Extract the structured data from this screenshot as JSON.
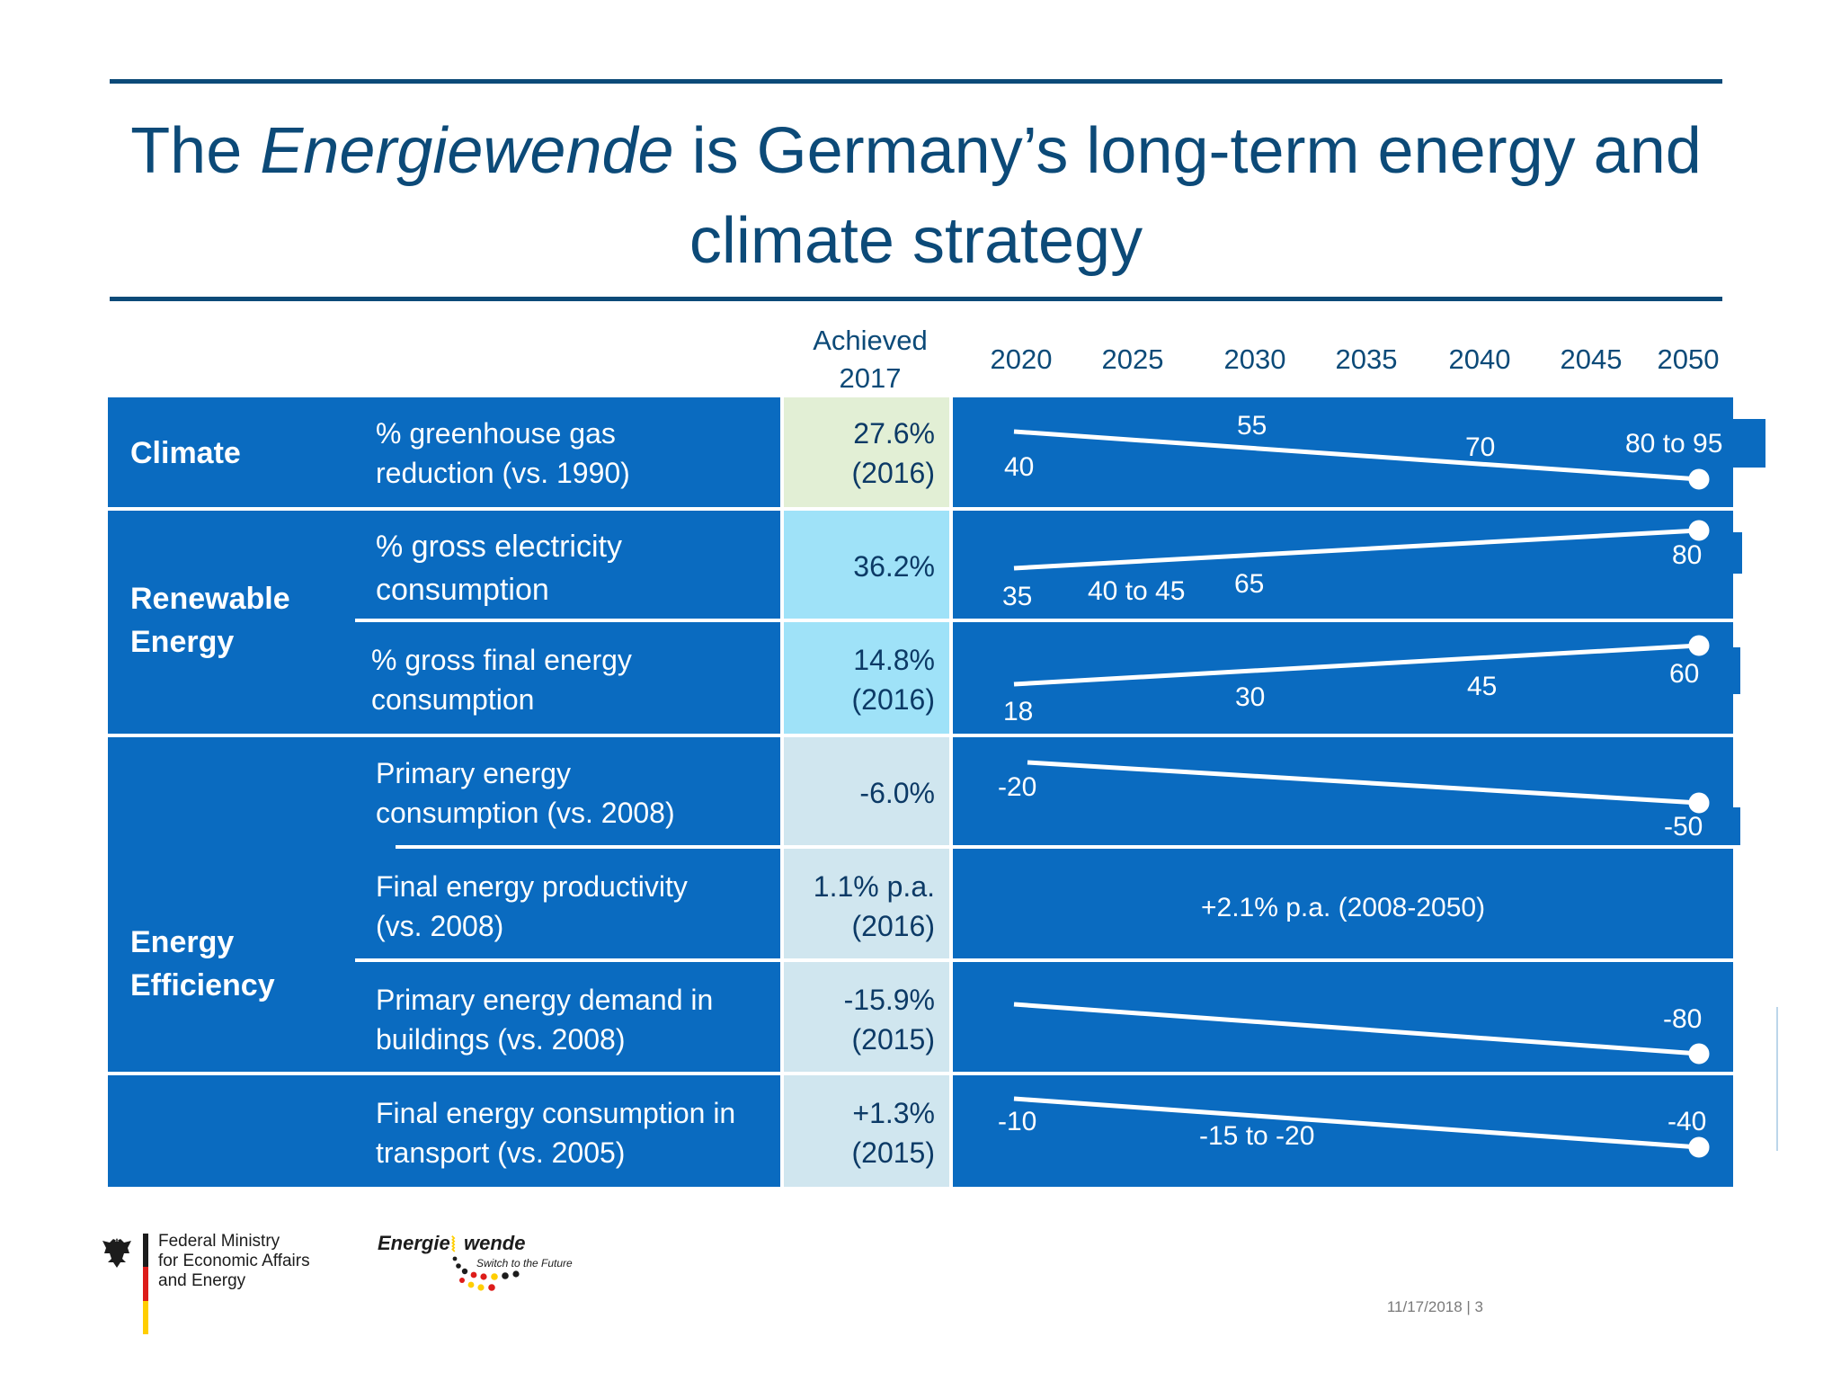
{
  "title": {
    "prefix": "The ",
    "italic": "Energiewende",
    "suffix": " is Germany’s long-term energy and climate strategy"
  },
  "header": {
    "achieved_line1": "Achieved",
    "achieved_line2": "2017",
    "years": [
      "2020",
      "2025",
      "2030",
      "2035",
      "2040",
      "2045",
      "2050"
    ]
  },
  "categories": {
    "climate": "Climate",
    "renewable_1": "Renewable",
    "renewable_2": "Energy",
    "efficiency_1": "Energy",
    "efficiency_2": "Efficiency"
  },
  "rows": [
    {
      "indicator_1": "% greenhouse  gas",
      "indicator_2": "reduction (vs. 1990)",
      "achieved_1": "27.6%",
      "achieved_2": "(2016)",
      "targets": [
        "40",
        "55",
        "70",
        "80 to 95"
      ]
    },
    {
      "indicator_1": "% gross electricity",
      "indicator_2": "consumption",
      "achieved_1": "36.2%",
      "achieved_2": "",
      "targets": [
        "35",
        "40 to 45",
        "65",
        "80"
      ]
    },
    {
      "indicator_1": "% gross final energy",
      "indicator_2": "consumption",
      "achieved_1": "14.8%",
      "achieved_2": "(2016)",
      "targets": [
        "18",
        "30",
        "45",
        "60"
      ]
    },
    {
      "indicator_1": "Primary energy",
      "indicator_2": "consumption (vs. 2008)",
      "achieved_1": "-6.0%",
      "achieved_2": "",
      "targets": [
        "-20",
        "-50"
      ]
    },
    {
      "indicator_1": "Final energy productivity",
      "indicator_2": "(vs. 2008)",
      "achieved_1": "1.1% p.a.",
      "achieved_2": "(2016)",
      "targets": [
        "+2.1% p.a. (2008-2050)"
      ]
    },
    {
      "indicator_1": "Primary energy demand in",
      "indicator_2": "buildings (vs. 2008)",
      "achieved_1": "-15.9%",
      "achieved_2": "(2015)",
      "targets": [
        "-80"
      ]
    },
    {
      "indicator_1": "Final energy consumption in",
      "indicator_2": "transport (vs. 2005)",
      "achieved_1": "+1.3%",
      "achieved_2": "(2015)",
      "targets": [
        "-10",
        "-15 to -20",
        "-40"
      ]
    }
  ],
  "footer": {
    "ministry_1": "Federal Ministry",
    "ministry_2": "for Economic Affairs",
    "ministry_3": "and Energy",
    "ew_word1": "Energie",
    "ew_word2": "wende",
    "ew_tagline": "Switch to the Future",
    "date_page": "11/17/2018 | 3"
  },
  "colors": {
    "band": "#0a6bc0",
    "title": "#0c4a78",
    "achieved_climate": "#e2efd5",
    "achieved_renewable": "#9fe2f8",
    "achieved_efficiency": "#d0e6ef"
  }
}
